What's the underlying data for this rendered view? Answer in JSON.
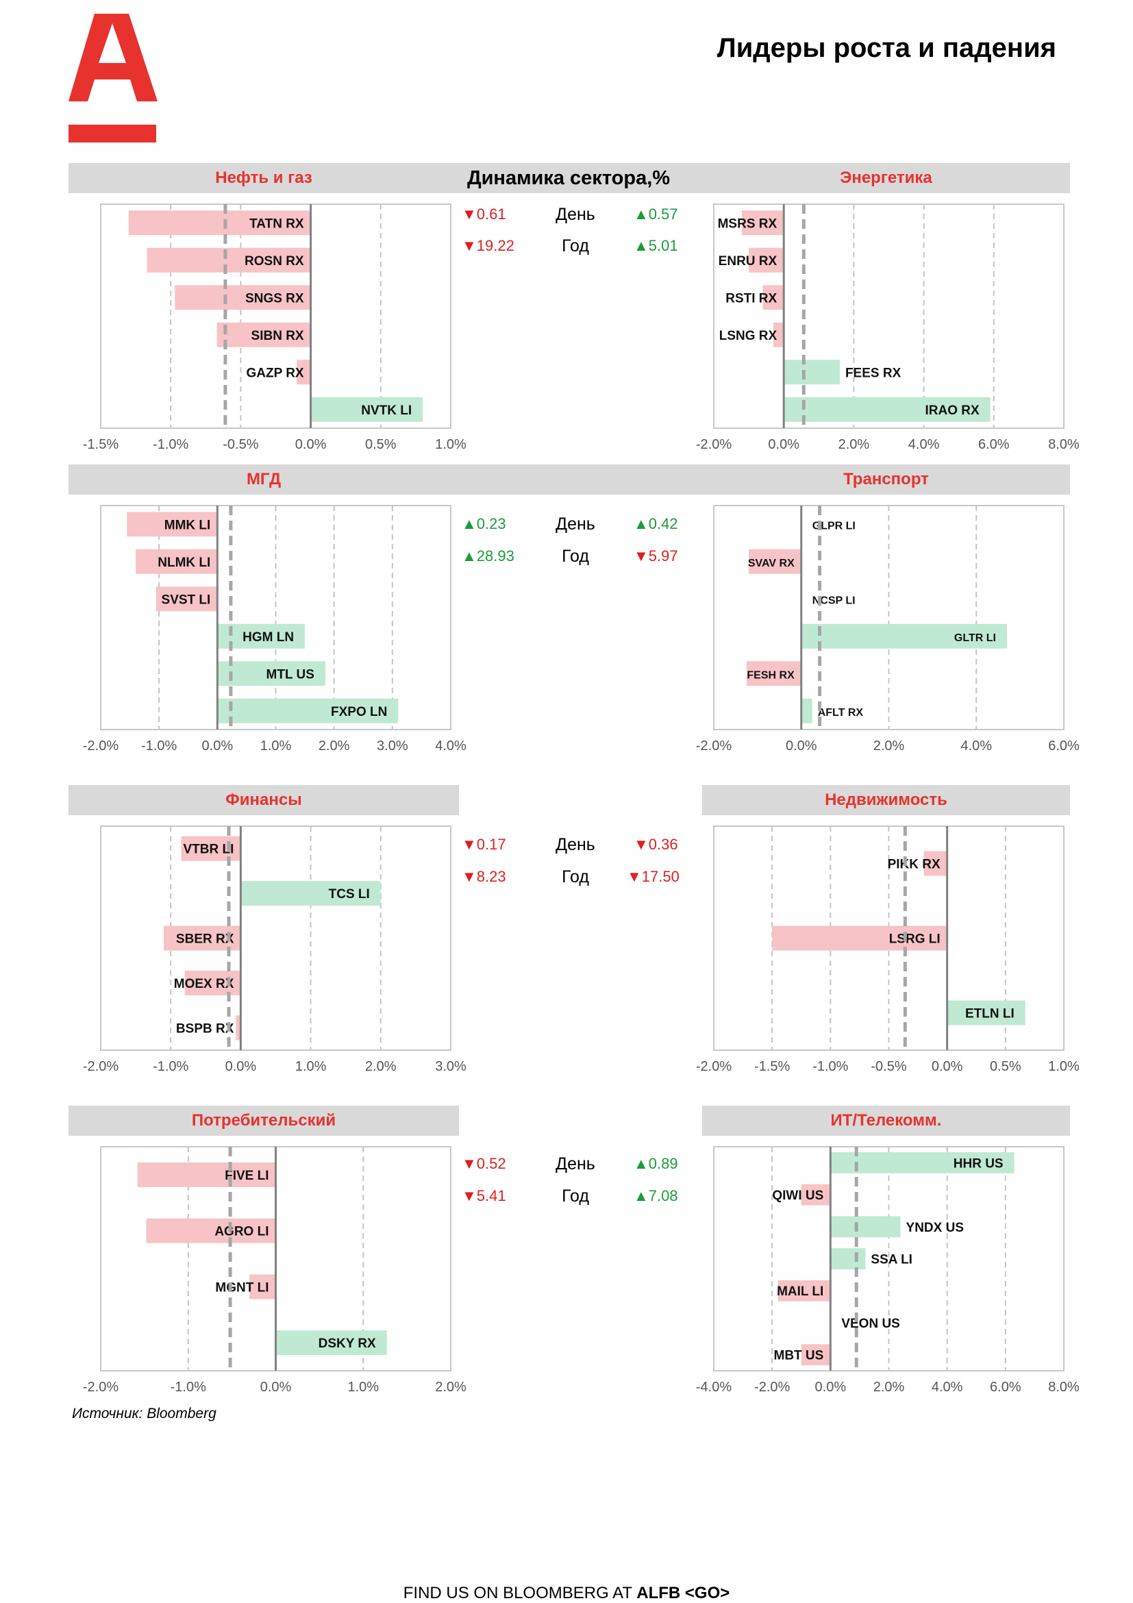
{
  "page_title": "Лидеры роста и падения",
  "dynamics_title": "Динамика сектора,%",
  "source": "Источник: Bloomberg",
  "footer": {
    "prefix": "FIND US ON BLOOMBERG AT ",
    "bold": "ALFB <GO>"
  },
  "colors": {
    "brand_red": "#e8322d",
    "neg_bar": "#f7c3c6",
    "pos_bar": "#bfe9d3",
    "header_gray": "#d9d9d9",
    "up": "#1a9c3a",
    "down": "#e01e1e"
  },
  "stats": [
    {
      "day_left": "▼0.61",
      "day_left_dir": "down",
      "day_right": "▲0.57",
      "day_right_dir": "up",
      "year_left": "▼19.22",
      "year_left_dir": "down",
      "year_right": "▲5.01",
      "year_right_dir": "up",
      "day_label": "День",
      "year_label": "Год"
    },
    {
      "day_left": "▲0.23",
      "day_left_dir": "up",
      "day_right": "▲0.42",
      "day_right_dir": "up",
      "year_left": "▲28.93",
      "year_left_dir": "up",
      "year_right": "▼5.97",
      "year_right_dir": "down",
      "day_label": "День",
      "year_label": "Год"
    },
    {
      "day_left": "▼0.17",
      "day_left_dir": "down",
      "day_right": "▼0.36",
      "day_right_dir": "down",
      "year_left": "▼8.23",
      "year_left_dir": "down",
      "year_right": "▼17.50",
      "year_right_dir": "down",
      "day_label": "День",
      "year_label": "Год"
    },
    {
      "day_left": "▼0.52",
      "day_left_dir": "down",
      "day_right": "▲0.89",
      "day_right_dir": "up",
      "year_left": "▼5.41",
      "year_left_dir": "down",
      "year_right": "▲7.08",
      "year_right_dir": "up",
      "day_label": "День",
      "year_label": "Год"
    }
  ],
  "chart_data": [
    {
      "type": "bar",
      "orientation": "horizontal",
      "title": "Нефть и газ",
      "categories": [
        "TATN RX",
        "ROSN RX",
        "SNGS RX",
        "SIBN RX",
        "GAZP RX",
        "NVTK LI"
      ],
      "values": [
        -1.3,
        -1.17,
        -0.97,
        -0.67,
        -0.1,
        0.8
      ],
      "avg_line": -0.61,
      "xlim": [
        -1.5,
        1.0
      ],
      "ticks": [
        -1.5,
        -1.0,
        -0.5,
        0.0,
        0.5,
        1.0
      ],
      "tick_labels": [
        "-1.5%",
        "-1.0%",
        "-0.5%",
        "0.0%",
        "0.5%",
        "1.0%"
      ]
    },
    {
      "type": "bar",
      "orientation": "horizontal",
      "title": "Энергетика",
      "categories": [
        "MSRS RX",
        "ENRU RX",
        "RSTI RX",
        "LSNG RX",
        "FEES RX",
        "IRAO RX"
      ],
      "values": [
        -1.2,
        -1.0,
        -0.6,
        -0.3,
        1.6,
        5.9
      ],
      "avg_line": 0.57,
      "xlim": [
        -2.0,
        8.0
      ],
      "ticks": [
        -2.0,
        0.0,
        2.0,
        4.0,
        6.0,
        8.0
      ],
      "tick_labels": [
        "-2.0%",
        "0.0%",
        "2.0%",
        "4.0%",
        "6.0%",
        "8.0%"
      ]
    },
    {
      "type": "bar",
      "orientation": "horizontal",
      "title": "МГД",
      "categories": [
        "MMK LI",
        "NLMK LI",
        "SVST LI",
        "HGM LN",
        "MTL US",
        "FXPO LN"
      ],
      "values": [
        -1.55,
        -1.4,
        -1.05,
        1.5,
        1.85,
        3.1
      ],
      "avg_line": 0.23,
      "xlim": [
        -2.0,
        4.0
      ],
      "ticks": [
        -2.0,
        -1.0,
        0.0,
        1.0,
        2.0,
        3.0,
        4.0
      ],
      "tick_labels": [
        "-2.0%",
        "-1.0%",
        "0.0%",
        "1.0%",
        "2.0%",
        "3.0%",
        "4.0%"
      ]
    },
    {
      "type": "bar",
      "orientation": "horizontal",
      "title": "Транспорт",
      "categories": [
        "GLPR LI",
        "SVAV RX",
        "NCSP LI",
        "GLTR LI",
        "FESH RX",
        "AFLT RX"
      ],
      "values": [
        0.0,
        -1.2,
        0.0,
        4.7,
        -1.25,
        0.25
      ],
      "avg_line": 0.42,
      "xlim": [
        -2.0,
        6.0
      ],
      "ticks": [
        -2.0,
        0.0,
        2.0,
        4.0,
        6.0
      ],
      "tick_labels": [
        "-2.0%",
        "0.0%",
        "2.0%",
        "4.0%",
        "6.0%"
      ]
    },
    {
      "type": "bar",
      "orientation": "horizontal",
      "title": "Финансы",
      "categories": [
        "VTBR LI",
        "TCS LI",
        "SBER RX",
        "MOEX RX",
        "BSPB RX"
      ],
      "values": [
        -0.85,
        2.0,
        -1.1,
        -0.8,
        -0.07
      ],
      "avg_line": -0.17,
      "xlim": [
        -2.0,
        3.0
      ],
      "ticks": [
        -2.0,
        -1.0,
        0.0,
        1.0,
        2.0,
        3.0
      ],
      "tick_labels": [
        "-2.0%",
        "-1.0%",
        "0.0%",
        "1.0%",
        "2.0%",
        "3.0%"
      ]
    },
    {
      "type": "bar",
      "orientation": "horizontal",
      "title": "Недвижимость",
      "categories": [
        "PIKK RX",
        "LSRG LI",
        "ETLN LI"
      ],
      "values": [
        -0.2,
        -1.5,
        0.67
      ],
      "avg_line": -0.36,
      "xlim": [
        -2.0,
        1.0
      ],
      "ticks": [
        -2.0,
        -1.5,
        -1.0,
        -0.5,
        0.0,
        0.5,
        1.0
      ],
      "tick_labels": [
        "-2.0%",
        "-1.5%",
        "-1.0%",
        "-0.5%",
        "0.0%",
        "0.5%",
        "1.0%"
      ]
    },
    {
      "type": "bar",
      "orientation": "horizontal",
      "title": "Потребительский",
      "categories": [
        "FIVE LI",
        "AGRO LI",
        "MGNT LI",
        "DSKY RX"
      ],
      "values": [
        -1.58,
        -1.48,
        -0.3,
        1.27
      ],
      "avg_line": -0.52,
      "xlim": [
        -2.0,
        2.0
      ],
      "ticks": [
        -2.0,
        -1.0,
        0.0,
        1.0,
        2.0
      ],
      "tick_labels": [
        "-2.0%",
        "-1.0%",
        "0.0%",
        "1.0%",
        "2.0%"
      ]
    },
    {
      "type": "bar",
      "orientation": "horizontal",
      "title": "ИТ/Телекомм.",
      "categories": [
        "HHR US",
        "QIWI US",
        "YNDX US",
        "SSA LI",
        "MAIL LI",
        "VEON US",
        "MBT US"
      ],
      "values": [
        6.3,
        -1.0,
        2.4,
        1.2,
        -1.8,
        0.0,
        -1.0
      ],
      "avg_line": 0.89,
      "xlim": [
        -4.0,
        8.0
      ],
      "ticks": [
        -4.0,
        -2.0,
        0.0,
        2.0,
        4.0,
        6.0,
        8.0
      ],
      "tick_labels": [
        "-4.0%",
        "-2.0%",
        "0.0%",
        "2.0%",
        "4.0%",
        "6.0%",
        "8.0%"
      ]
    }
  ]
}
